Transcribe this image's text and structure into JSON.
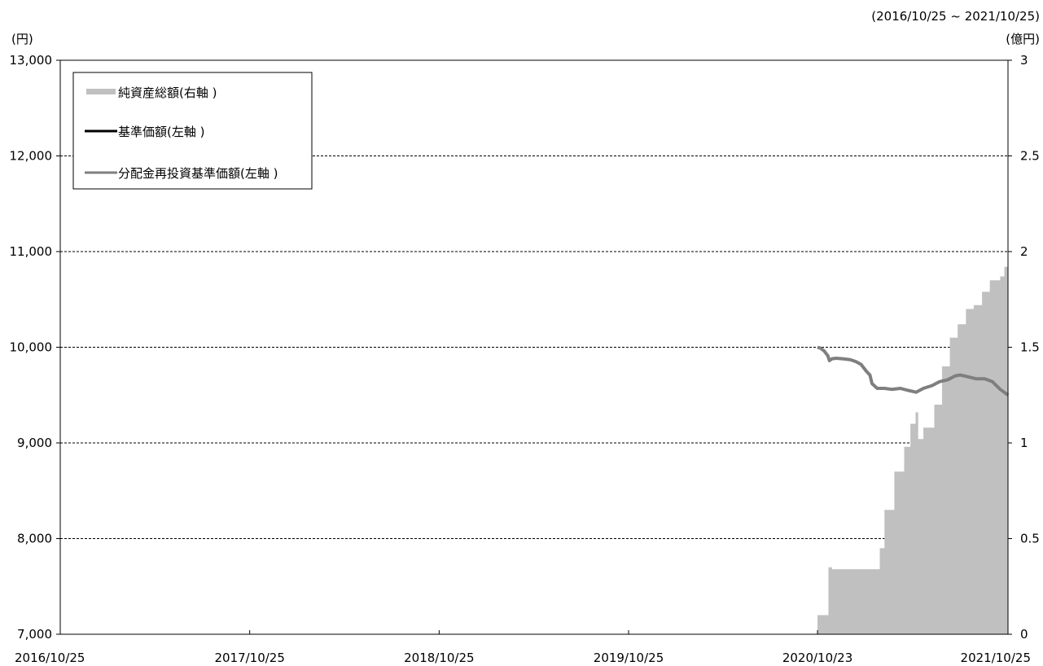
{
  "chart_data": {
    "type": "line",
    "period_label": "(2016/10/25 ~ 2021/10/25)",
    "y_left_unit": "(円)",
    "y_right_unit": "(億円)",
    "y_left": {
      "min": 7000,
      "max": 13000,
      "ticks": [
        7000,
        8000,
        9000,
        10000,
        11000,
        12000,
        13000
      ],
      "tick_labels": [
        "7,000",
        "8,000",
        "9,000",
        "10,000",
        "11,000",
        "12,000",
        "13,000"
      ]
    },
    "y_right": {
      "min": 0,
      "max": 3,
      "ticks": [
        0,
        0.5,
        1,
        1.5,
        2,
        2.5,
        3
      ],
      "tick_labels": [
        "0",
        "0.5",
        "1",
        "1.5",
        "2",
        "2.5",
        "3"
      ]
    },
    "x": {
      "start": "2016-10-25",
      "end": "2021-10-25",
      "ticks": [
        "2016-10-25",
        "2017-10-25",
        "2018-10-25",
        "2019-10-25",
        "2020-10-23",
        "2021-10-25"
      ],
      "tick_labels": [
        "2016/10/25",
        "2017/10/25",
        "2018/10/25",
        "2019/10/25",
        "2020/10/23",
        "2021/10/25"
      ]
    },
    "grid": "horizontal-dashed",
    "legend": {
      "placement": "top-left",
      "items": [
        {
          "label": "純資産総額(右軸 )",
          "color": "#c0c0c0",
          "kind": "area"
        },
        {
          "label": "基準価額(左軸 )",
          "color": "#000000",
          "kind": "line"
        },
        {
          "label": "分配金再投資基準価額(左軸 )",
          "color": "#7f7f7f",
          "kind": "line"
        }
      ]
    },
    "series": [
      {
        "name": "純資産総額(右軸 )",
        "axis": "right",
        "type": "area",
        "color": "#c0c0c0",
        "points": [
          [
            "2020-10-23",
            0.1
          ],
          [
            "2020-11-12",
            0.1
          ],
          [
            "2020-11-13",
            0.35
          ],
          [
            "2020-11-20",
            0.34
          ],
          [
            "2021-02-15",
            0.34
          ],
          [
            "2021-02-20",
            0.45
          ],
          [
            "2021-03-01",
            0.65
          ],
          [
            "2021-03-20",
            0.85
          ],
          [
            "2021-04-08",
            0.98
          ],
          [
            "2021-04-20",
            1.1
          ],
          [
            "2021-04-30",
            1.16
          ],
          [
            "2021-05-05",
            1.02
          ],
          [
            "2021-05-15",
            1.08
          ],
          [
            "2021-06-05",
            1.2
          ],
          [
            "2021-06-20",
            1.4
          ],
          [
            "2021-07-05",
            1.55
          ],
          [
            "2021-07-20",
            1.62
          ],
          [
            "2021-08-05",
            1.7
          ],
          [
            "2021-08-20",
            1.72
          ],
          [
            "2021-09-05",
            1.79
          ],
          [
            "2021-09-20",
            1.85
          ],
          [
            "2021-10-10",
            1.87
          ],
          [
            "2021-10-18",
            1.92
          ],
          [
            "2021-10-25",
            1.92
          ]
        ]
      },
      {
        "name": "基準価額(左軸 )",
        "axis": "left",
        "type": "line",
        "color": "#000000",
        "points": [
          [
            "2020-10-23",
            10000
          ],
          [
            "2020-10-29",
            9990
          ],
          [
            "2020-11-05",
            9960
          ],
          [
            "2020-11-12",
            9910
          ],
          [
            "2020-11-15",
            9860
          ],
          [
            "2020-11-20",
            9880
          ],
          [
            "2020-11-28",
            9885
          ],
          [
            "2020-12-10",
            9880
          ],
          [
            "2020-12-25",
            9870
          ],
          [
            "2021-01-05",
            9850
          ],
          [
            "2021-01-15",
            9820
          ],
          [
            "2021-01-25",
            9750
          ],
          [
            "2021-02-01",
            9710
          ],
          [
            "2021-02-05",
            9620
          ],
          [
            "2021-02-15",
            9570
          ],
          [
            "2021-03-01",
            9570
          ],
          [
            "2021-03-15",
            9560
          ],
          [
            "2021-04-01",
            9570
          ],
          [
            "2021-04-15",
            9550
          ],
          [
            "2021-05-01",
            9530
          ],
          [
            "2021-05-15",
            9570
          ],
          [
            "2021-06-01",
            9600
          ],
          [
            "2021-06-15",
            9640
          ],
          [
            "2021-07-01",
            9660
          ],
          [
            "2021-07-15",
            9700
          ],
          [
            "2021-07-25",
            9710
          ],
          [
            "2021-08-10",
            9690
          ],
          [
            "2021-08-25",
            9670
          ],
          [
            "2021-09-10",
            9670
          ],
          [
            "2021-09-25",
            9640
          ],
          [
            "2021-10-10",
            9560
          ],
          [
            "2021-10-25",
            9500
          ]
        ]
      },
      {
        "name": "分配金再投資基準価額(左軸 )",
        "axis": "left",
        "type": "line",
        "color": "#7f7f7f",
        "points": [
          [
            "2020-10-23",
            10000
          ],
          [
            "2020-10-29",
            9990
          ],
          [
            "2020-11-05",
            9960
          ],
          [
            "2020-11-12",
            9910
          ],
          [
            "2020-11-15",
            9860
          ],
          [
            "2020-11-20",
            9880
          ],
          [
            "2020-11-28",
            9885
          ],
          [
            "2020-12-10",
            9880
          ],
          [
            "2020-12-25",
            9870
          ],
          [
            "2021-01-05",
            9850
          ],
          [
            "2021-01-15",
            9820
          ],
          [
            "2021-01-25",
            9750
          ],
          [
            "2021-02-01",
            9710
          ],
          [
            "2021-02-05",
            9620
          ],
          [
            "2021-02-15",
            9570
          ],
          [
            "2021-03-01",
            9570
          ],
          [
            "2021-03-15",
            9560
          ],
          [
            "2021-04-01",
            9570
          ],
          [
            "2021-04-15",
            9550
          ],
          [
            "2021-05-01",
            9530
          ],
          [
            "2021-05-15",
            9570
          ],
          [
            "2021-06-01",
            9600
          ],
          [
            "2021-06-15",
            9640
          ],
          [
            "2021-07-01",
            9660
          ],
          [
            "2021-07-15",
            9700
          ],
          [
            "2021-07-25",
            9710
          ],
          [
            "2021-08-10",
            9690
          ],
          [
            "2021-08-25",
            9670
          ],
          [
            "2021-09-10",
            9670
          ],
          [
            "2021-09-25",
            9640
          ],
          [
            "2021-10-10",
            9560
          ],
          [
            "2021-10-25",
            9500
          ]
        ]
      }
    ]
  }
}
